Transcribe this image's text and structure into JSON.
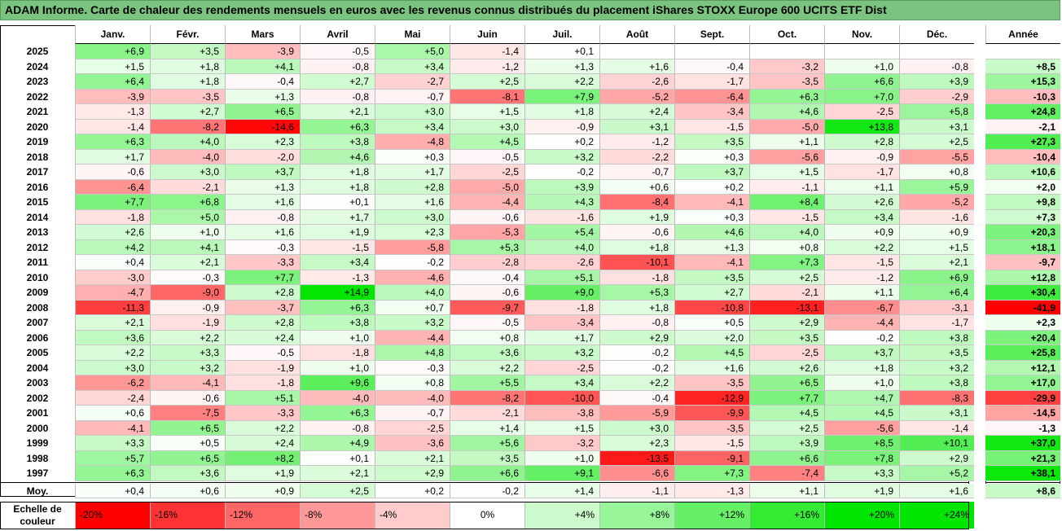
{
  "title": "ADAM Informe. Carte de chaleur des rendements mensuels en euros avec les revenus connus distribués du placement iShares STOXX Europe 600 UCITS ETF Dist",
  "chart_data": {
    "type": "heatmap",
    "months": [
      "Janv.",
      "Févr.",
      "Mars",
      "Avril",
      "Mai",
      "Juin",
      "Juil.",
      "Août",
      "Sept.",
      "Oct.",
      "Nov.",
      "Déc."
    ],
    "annual_label": "Année",
    "rows": [
      {
        "year": "2025",
        "values": [
          "+6,9",
          "+3,5",
          "-3,9",
          "-0,5",
          "+5,0",
          "-1,4",
          "+0,1",
          "",
          "",
          "",
          "",
          ""
        ],
        "annual": ""
      },
      {
        "year": "2024",
        "values": [
          "+1,5",
          "+1,8",
          "+4,1",
          "-0,8",
          "+3,4",
          "-1,2",
          "+1,3",
          "+1,6",
          "-0,4",
          "-3,2",
          "+1,0",
          "-0,8"
        ],
        "annual": "+8,5"
      },
      {
        "year": "2023",
        "values": [
          "+6,4",
          "+1,8",
          "-0,4",
          "+2,7",
          "-2,7",
          "+2,5",
          "+2,2",
          "-2,6",
          "-1,7",
          "-3,5",
          "+6,6",
          "+3,9"
        ],
        "annual": "+15,3"
      },
      {
        "year": "2022",
        "values": [
          "-3,9",
          "-3,5",
          "+1,3",
          "-0,8",
          "-0,7",
          "-8,1",
          "+7,9",
          "-5,2",
          "-6,4",
          "+6,3",
          "+7,0",
          "-2,9"
        ],
        "annual": "-10,3"
      },
      {
        "year": "2021",
        "values": [
          "-1,3",
          "+2,7",
          "+6,5",
          "+2,1",
          "+3,0",
          "+1,5",
          "+1,8",
          "+2,4",
          "-3,4",
          "+4,6",
          "-2,5",
          "+5,8"
        ],
        "annual": "+24,8"
      },
      {
        "year": "2020",
        "values": [
          "-1,4",
          "-8,2",
          "-14,6",
          "+6,3",
          "+3,4",
          "+3,0",
          "-0,9",
          "+3,1",
          "-1,5",
          "-5,0",
          "+13,8",
          "+3,1"
        ],
        "annual": "-2,1"
      },
      {
        "year": "2019",
        "values": [
          "+6,3",
          "+4,0",
          "+2,3",
          "+3,8",
          "-4,8",
          "+4,5",
          "+0,2",
          "-1,2",
          "+3,5",
          "+1,1",
          "+2,8",
          "+2,5"
        ],
        "annual": "+27,3"
      },
      {
        "year": "2018",
        "values": [
          "+1,7",
          "-4,0",
          "-2,0",
          "+4,6",
          "+0,3",
          "-0,5",
          "+3,2",
          "-2,2",
          "+0,3",
          "-5,6",
          "-0,9",
          "-5,5"
        ],
        "annual": "-10,4"
      },
      {
        "year": "2017",
        "values": [
          "-0,6",
          "+3,0",
          "+3,7",
          "+1,8",
          "+1,7",
          "-2,5",
          "-0,2",
          "-0,7",
          "+3,7",
          "+1,5",
          "-1,7",
          "+0,8"
        ],
        "annual": "+10,6"
      },
      {
        "year": "2016",
        "values": [
          "-6,4",
          "-2,1",
          "+1,3",
          "+1,8",
          "+2,8",
          "-5,0",
          "+3,9",
          "+0,6",
          "+0,2",
          "-1,1",
          "+1,1",
          "+5,9"
        ],
        "annual": "+2,0"
      },
      {
        "year": "2015",
        "values": [
          "+7,7",
          "+6,8",
          "+1,6",
          "+0,1",
          "+1,6",
          "-4,4",
          "+4,3",
          "-8,4",
          "-4,1",
          "+8,4",
          "+2,6",
          "-5,2"
        ],
        "annual": "+9,8"
      },
      {
        "year": "2014",
        "values": [
          "-1,8",
          "+5,0",
          "-0,8",
          "+1,7",
          "+3,0",
          "-0,6",
          "-1,6",
          "+1,9",
          "+0,3",
          "-1,5",
          "+3,4",
          "-1,6"
        ],
        "annual": "+7,3"
      },
      {
        "year": "2013",
        "values": [
          "+2,6",
          "+1,0",
          "+1,6",
          "+1,9",
          "+2,3",
          "-5,3",
          "+5,4",
          "-0,6",
          "+4,6",
          "+4,0",
          "+0,9",
          "+0,9"
        ],
        "annual": "+20,3"
      },
      {
        "year": "2012",
        "values": [
          "+4,2",
          "+4,1",
          "-0,3",
          "-1,5",
          "-5,8",
          "+5,3",
          "+4,0",
          "+1,8",
          "+1,3",
          "+0,8",
          "+2,2",
          "+1,5"
        ],
        "annual": "+18,1"
      },
      {
        "year": "2011",
        "values": [
          "+0,4",
          "+2,1",
          "-3,3",
          "+3,4",
          "-0,2",
          "-2,8",
          "-2,6",
          "-10,1",
          "-4,1",
          "+7,3",
          "-1,5",
          "+2,1"
        ],
        "annual": "-9,7"
      },
      {
        "year": "2010",
        "values": [
          "-3,0",
          "-0,3",
          "+7,7",
          "-1,3",
          "-4,6",
          "-0,4",
          "+5,1",
          "-1,8",
          "+3,5",
          "+2,5",
          "-1,2",
          "+6,9"
        ],
        "annual": "+12,8"
      },
      {
        "year": "2009",
        "values": [
          "-4,7",
          "-9,0",
          "+2,8",
          "+14,9",
          "+4,0",
          "-0,6",
          "+9,0",
          "+5,3",
          "+2,7",
          "-2,1",
          "+1,1",
          "+6,4"
        ],
        "annual": "+30,4"
      },
      {
        "year": "2008",
        "values": [
          "-11,3",
          "-0,9",
          "-3,7",
          "+6,3",
          "+0,7",
          "-9,7",
          "-1,8",
          "+1,8",
          "-10,8",
          "-13,1",
          "-6,7",
          "-3,1"
        ],
        "annual": "-41,9"
      },
      {
        "year": "2007",
        "values": [
          "+2,1",
          "-1,9",
          "+2,8",
          "+3,8",
          "+3,2",
          "-0,5",
          "-3,4",
          "-0,8",
          "+0,5",
          "+2,9",
          "-4,4",
          "-1,7"
        ],
        "annual": "+2,3"
      },
      {
        "year": "2006",
        "values": [
          "+3,6",
          "+2,2",
          "+2,4",
          "+1,0",
          "-4,4",
          "+0,8",
          "+1,7",
          "+2,9",
          "+2,0",
          "+3,5",
          "-0,2",
          "+3,8"
        ],
        "annual": "+20,4"
      },
      {
        "year": "2005",
        "values": [
          "+2,2",
          "+3,3",
          "-0,5",
          "-1,8",
          "+4,8",
          "+3,6",
          "+3,2",
          "-0,2",
          "+4,5",
          "-2,5",
          "+3,7",
          "+3,5"
        ],
        "annual": "+25,8"
      },
      {
        "year": "2004",
        "values": [
          "+3,0",
          "+3,2",
          "-1,9",
          "+1,0",
          "-0,3",
          "+2,2",
          "-2,5",
          "-0,2",
          "+1,6",
          "+2,6",
          "+1,8",
          "+3,2"
        ],
        "annual": "+12,1"
      },
      {
        "year": "2003",
        "values": [
          "-6,2",
          "-4,1",
          "-1,8",
          "+9,6",
          "+0,8",
          "+5,5",
          "+3,4",
          "+2,2",
          "-3,5",
          "+6,5",
          "+1,0",
          "+3,8"
        ],
        "annual": "+17,0"
      },
      {
        "year": "2002",
        "values": [
          "-2,4",
          "-0,6",
          "+5,1",
          "-4,0",
          "-4,0",
          "-8,2",
          "-10,0",
          "-0,4",
          "-12,9",
          "+7,7",
          "+4,7",
          "-8,3"
        ],
        "annual": "-29,9"
      },
      {
        "year": "2001",
        "values": [
          "+0,6",
          "-7,5",
          "-3,3",
          "+6,3",
          "-0,7",
          "-2,1",
          "-3,8",
          "-5,9",
          "-9,9",
          "+4,5",
          "+4,5",
          "+3,1"
        ],
        "annual": "-14,5"
      },
      {
        "year": "2000",
        "values": [
          "-4,1",
          "+6,5",
          "+2,2",
          "-0,8",
          "-2,5",
          "+1,4",
          "+1,5",
          "+3,0",
          "-3,5",
          "+2,5",
          "-5,6",
          "-1,4"
        ],
        "annual": "-1,3"
      },
      {
        "year": "1999",
        "values": [
          "+3,3",
          "+0,5",
          "+2,4",
          "+4,9",
          "-3,6",
          "+5,6",
          "-3,2",
          "+2,3",
          "-1,5",
          "+3,9",
          "+8,5",
          "+10,1"
        ],
        "annual": "+37,0"
      },
      {
        "year": "1998",
        "values": [
          "+5,7",
          "+6,5",
          "+8,2",
          "+0,1",
          "+2,1",
          "+3,5",
          "+1,0",
          "-13,5",
          "-9,1",
          "+6,6",
          "+7,8",
          "+2,9"
        ],
        "annual": "+21,3"
      },
      {
        "year": "1997",
        "values": [
          "+6,3",
          "+3,6",
          "+1,9",
          "+2,1",
          "+2,9",
          "+6,6",
          "+9,1",
          "-6,6",
          "+7,3",
          "-7,4",
          "+3,3",
          "+5,2"
        ],
        "annual": "+38,1"
      }
    ],
    "average": {
      "label": "Moy.",
      "values": [
        "+0,4",
        "+0,6",
        "+0,9",
        "+2,5",
        "+0,2",
        "-0,2",
        "+1,4",
        "-1,1",
        "-1,3",
        "+1,1",
        "+1,9",
        "+1,6"
      ],
      "annual": "+8,6"
    },
    "scale": {
      "label": "Echelle de couleur",
      "steps": [
        "-20%",
        "-16%",
        "-12%",
        "-8%",
        "-4%",
        "0%",
        "+4%",
        "+8%",
        "+12%",
        "+16%",
        "+20%",
        "+24%"
      ],
      "step_values": [
        -20,
        -16,
        -12,
        -8,
        -4,
        0,
        4,
        8,
        12,
        16,
        20,
        24
      ]
    },
    "colors": {
      "negative_max": "#ff0000",
      "neutral": "#ffffff",
      "positive_max": "#00e000",
      "title_bg": "#7bc47f"
    }
  }
}
